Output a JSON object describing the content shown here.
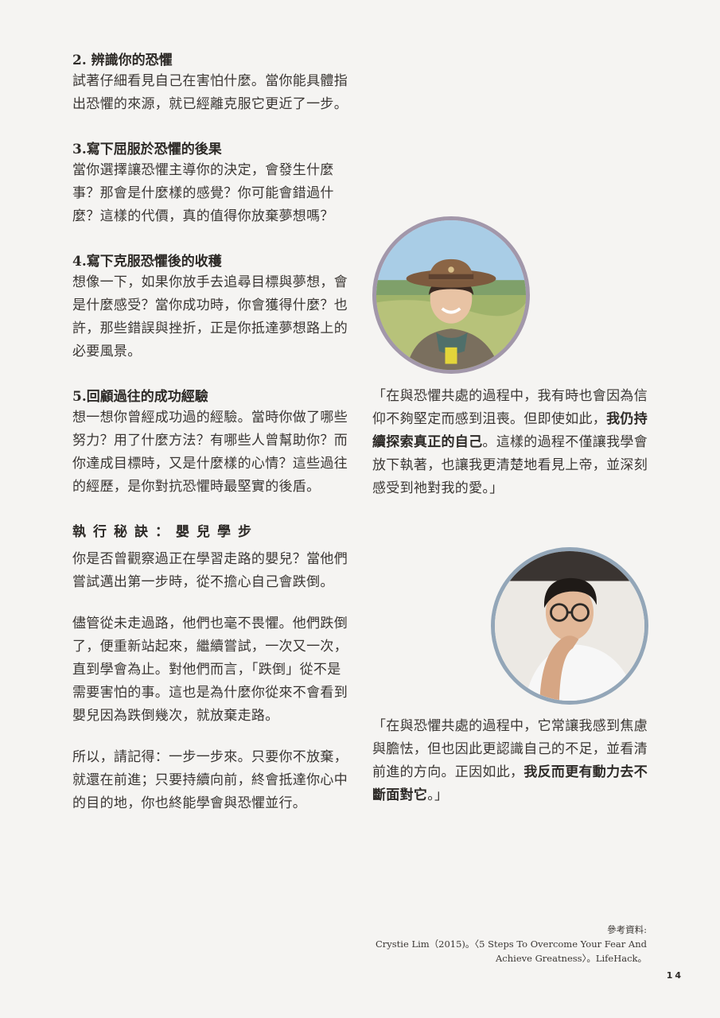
{
  "steps": [
    {
      "title": "2. 辨識你的恐懼",
      "body": "試著仔細看見自己在害怕什麼。當你能具體指出恐懼的來源，就已經離克服它更近了一步。"
    },
    {
      "title": "3.寫下屈服於恐懼的後果",
      "body": "當你選擇讓恐懼主導你的決定，會發生什麼事？那會是什麼樣的感覺？你可能會錯過什麼？這樣的代價，真的值得你放棄夢想嗎？"
    },
    {
      "title": "4.寫下克服恐懼後的收穫",
      "body": "想像一下，如果你放手去追尋目標與夢想，會是什麼感受？當你成功時，你會獲得什麼？也許，那些錯誤與挫折，正是你抵達夢想路上的必要風景。"
    },
    {
      "title": "5.回顧過往的成功經驗",
      "body": "想一想你曾經成功過的經驗。當時你做了哪些努力？用了什麼方法？有哪些人曾幫助你？而你達成目標時，又是什麼樣的心情？這些過往的經歷，是你對抗恐懼時最堅實的後盾。"
    }
  ],
  "tip": {
    "title": "執行秘訣：嬰兒學步",
    "paragraphs": [
      "你是否曾觀察過正在學習走路的嬰兒？當他們嘗試邁出第一步時，從不擔心自己會跌倒。",
      "儘管從未走過路，他們也毫不畏懼。他們跌倒了，便重新站起來，繼續嘗試，一次又一次，直到學會為止。對他們而言，「跌倒」從不是需要害怕的事。這也是為什麼你從來不會看到嬰兒因為跌倒幾次，就放棄走路。",
      "所以，請記得：一步一步來。只要你不放棄，就還在前進；只要持續向前，終會抵達你心中的目的地，你也終能學會與恐懼並行。"
    ]
  },
  "quotes": [
    {
      "before": "「在與恐懼共處的過程中，我有時也會因為信仰不夠堅定而感到沮喪。但即使如此，",
      "bold": "我仍持續探索真正的自己",
      "after": "。這樣的過程不僅讓我學會放下執著，也讓我更清楚地看見上帝，並深刻感受到祂對我的愛。」"
    },
    {
      "before": "「在與恐懼共處的過程中，它常讓我感到焦慮與膽怯，但也因此更認識自己的不足，並看清前進的方向。正因如此，",
      "bold": "我反而更有動力去不斷面對它",
      "after": "。」"
    }
  ],
  "reference": {
    "label": "參考資料:",
    "line1": "Crystie Lim（2015)。〈5 Steps To Overcome Your Fear And",
    "line2": "Achieve Greatness〉。LifeHack。"
  },
  "page_number": "14",
  "icons": {
    "avatar1": "woman-with-hat-photo",
    "avatar2": "man-with-glasses-photo"
  },
  "colors": {
    "avatar1_border": "#a297aa",
    "avatar2_border": "#93a6b8",
    "background": "#f5f4f2"
  }
}
